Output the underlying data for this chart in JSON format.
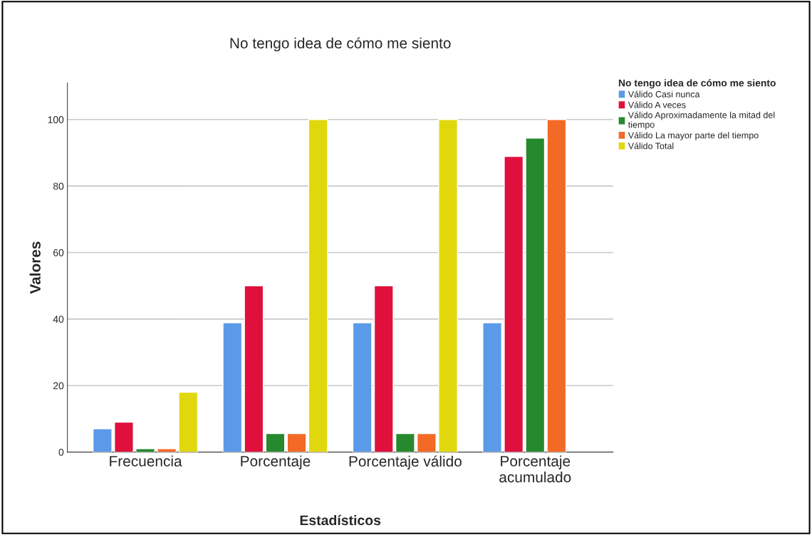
{
  "chart_data": {
    "type": "bar",
    "title": "No tengo idea de cómo me siento",
    "xlabel": "Estadísticos",
    "ylabel": "Valores",
    "legend_title": "No tengo idea de cómo me siento",
    "categories": [
      "Frecuencia",
      "Porcentaje",
      "Porcentaje válido",
      "Porcentaje\nacumulado"
    ],
    "series": [
      {
        "name": "Válido Casi nunca",
        "color": "#5b9ae8",
        "values": [
          7,
          38.9,
          38.9,
          38.9
        ]
      },
      {
        "name": "Válido A veces",
        "color": "#e0103c",
        "values": [
          9,
          50,
          50,
          88.9
        ]
      },
      {
        "name": "Válido Aproximadamente la mitad del\ntiempo",
        "color": "#27892e",
        "values": [
          1,
          5.6,
          5.6,
          94.4
        ]
      },
      {
        "name": "Válido La mayor parte del tiempo",
        "color": "#f26a26",
        "values": [
          1,
          5.6,
          5.6,
          100
        ]
      },
      {
        "name": "Válido Total",
        "color": "#e0d80c",
        "values": [
          18,
          100,
          100,
          null
        ]
      }
    ],
    "ylim": [
      0,
      111
    ],
    "yticks": [
      0,
      20,
      40,
      60,
      80,
      100
    ],
    "grid": "y",
    "legend": "top right"
  }
}
